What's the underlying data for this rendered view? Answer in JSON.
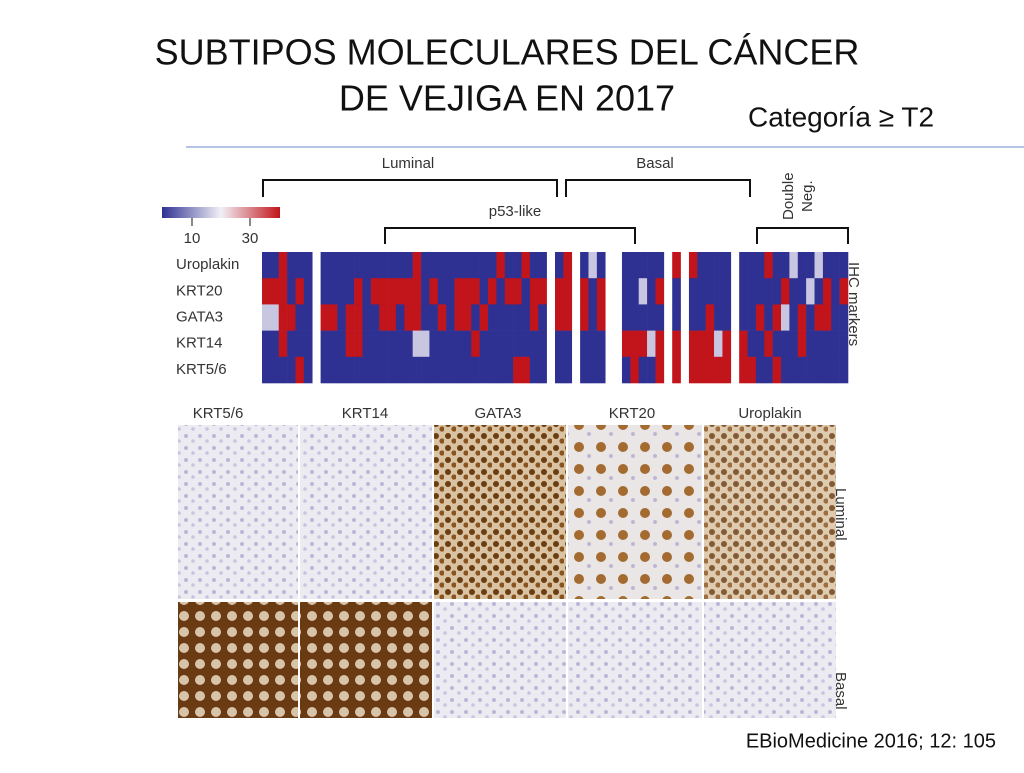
{
  "header": {
    "title_lines": [
      "SUBTIPOS MOLECULARES DEL CÁNCER",
      "DE VEJIGA EN 2017"
    ],
    "category": "Categoría  ≥ T2"
  },
  "figure": {
    "groups": {
      "luminal": "Luminal",
      "basal": "Basal",
      "p53_like": "p53-like",
      "double_neg": [
        "Double",
        "Neg."
      ]
    },
    "scale_ticks": [
      "10",
      "30"
    ],
    "markers": [
      "Uroplakin",
      "KRT20",
      "GATA3",
      "KRT14",
      "KRT5/6"
    ],
    "markers_title": "IHC markers",
    "ihc_columns": [
      "KRT5/6",
      "KRT14",
      "GATA3",
      "KRT20",
      "Uroplakin"
    ],
    "ihc_rows": [
      "Luminal",
      "Basal"
    ]
  },
  "citation": "EBioMedicine 2016; 12: 105"
}
